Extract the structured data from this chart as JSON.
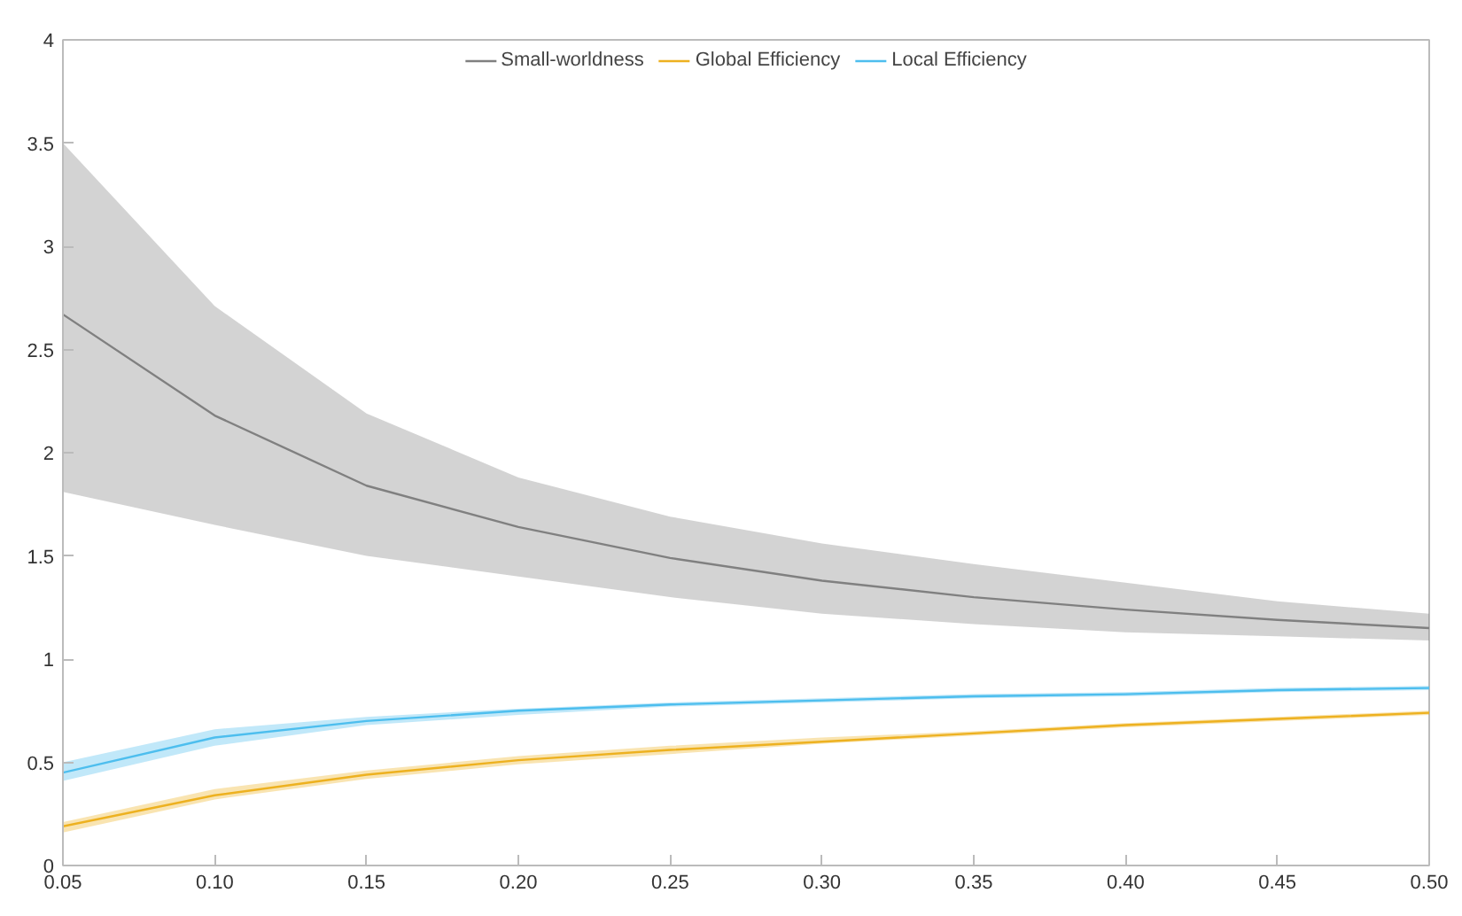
{
  "chart_data": {
    "type": "line",
    "x": [
      0.05,
      0.1,
      0.15,
      0.2,
      0.25,
      0.3,
      0.35,
      0.4,
      0.45,
      0.5
    ],
    "series": [
      {
        "name": "Small-worldness",
        "color": "#808080",
        "values": [
          2.67,
          2.18,
          1.84,
          1.64,
          1.49,
          1.38,
          1.3,
          1.24,
          1.19,
          1.15
        ],
        "lower": [
          1.81,
          1.65,
          1.5,
          1.4,
          1.3,
          1.22,
          1.17,
          1.13,
          1.11,
          1.09
        ],
        "upper": [
          3.5,
          2.71,
          2.19,
          1.88,
          1.69,
          1.56,
          1.46,
          1.37,
          1.28,
          1.22
        ]
      },
      {
        "name": "Global Efficiency",
        "color": "#edb120",
        "values": [
          0.19,
          0.34,
          0.44,
          0.51,
          0.56,
          0.6,
          0.64,
          0.68,
          0.71,
          0.74
        ],
        "lower": [
          0.16,
          0.32,
          0.42,
          0.49,
          0.54,
          0.59,
          0.63,
          0.67,
          0.7,
          0.73
        ],
        "upper": [
          0.21,
          0.37,
          0.46,
          0.53,
          0.58,
          0.62,
          0.65,
          0.69,
          0.72,
          0.75
        ]
      },
      {
        "name": "Local Efficiency",
        "color": "#4dbeee",
        "values": [
          0.45,
          0.62,
          0.7,
          0.75,
          0.78,
          0.8,
          0.82,
          0.83,
          0.85,
          0.86
        ],
        "lower": [
          0.41,
          0.58,
          0.68,
          0.73,
          0.77,
          0.79,
          0.81,
          0.82,
          0.84,
          0.85
        ],
        "upper": [
          0.5,
          0.66,
          0.72,
          0.76,
          0.79,
          0.81,
          0.83,
          0.84,
          0.86,
          0.87
        ]
      }
    ],
    "xlim": [
      0.05,
      0.5
    ],
    "xticks": [
      {
        "value": 0.05,
        "label": "0.05"
      },
      {
        "value": 0.1,
        "label": "0.10"
      },
      {
        "value": 0.15,
        "label": "0.15"
      },
      {
        "value": 0.2,
        "label": "0.20"
      },
      {
        "value": 0.25,
        "label": "0.25"
      },
      {
        "value": 0.3,
        "label": "0.30"
      },
      {
        "value": 0.35,
        "label": "0.35"
      },
      {
        "value": 0.4,
        "label": "0.40"
      },
      {
        "value": 0.45,
        "label": "0.45"
      },
      {
        "value": 0.5,
        "label": "0.50"
      }
    ],
    "ylim": [
      0,
      4
    ],
    "yticks": [
      0,
      0.5,
      1,
      1.5,
      2,
      2.5,
      3,
      3.5,
      4
    ],
    "grid": false,
    "legend": "top",
    "line_style": "solid"
  }
}
